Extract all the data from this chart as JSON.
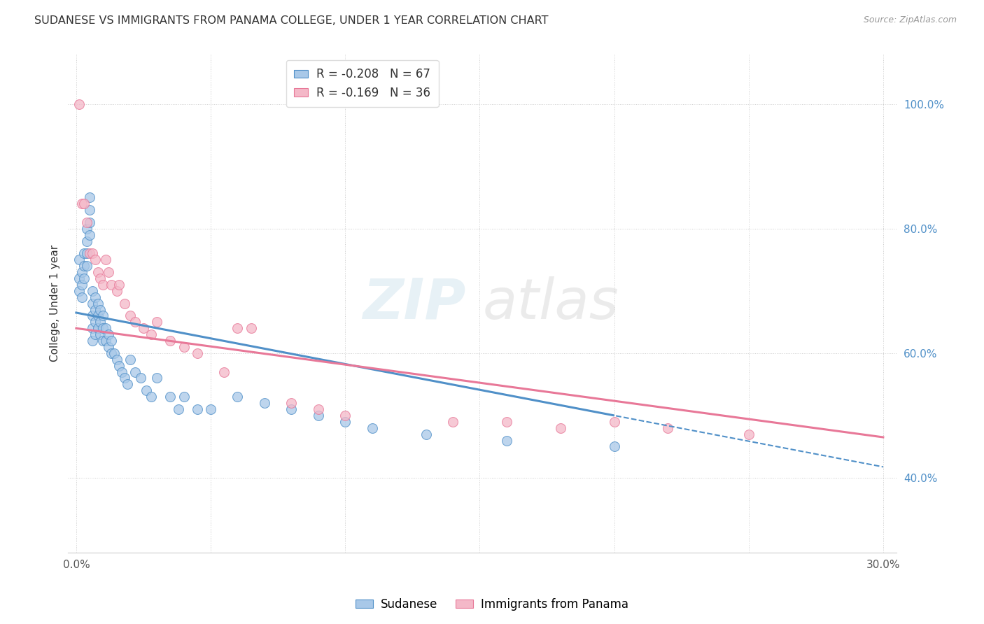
{
  "title": "SUDANESE VS IMMIGRANTS FROM PANAMA COLLEGE, UNDER 1 YEAR CORRELATION CHART",
  "source": "Source: ZipAtlas.com",
  "ylabel": "College, Under 1 year",
  "watermark_zip": "ZIP",
  "watermark_atlas": "atlas",
  "blue_color": "#a8c8e8",
  "pink_color": "#f4b8c8",
  "blue_line_color": "#5090c8",
  "pink_line_color": "#e87898",
  "legend_r1": "R = -0.208",
  "legend_n1": "N = 67",
  "legend_r2": "R = -0.169",
  "legend_n2": "N = 36",
  "sudanese_x": [
    0.001,
    0.001,
    0.001,
    0.002,
    0.002,
    0.002,
    0.003,
    0.003,
    0.003,
    0.004,
    0.004,
    0.004,
    0.004,
    0.005,
    0.005,
    0.005,
    0.005,
    0.006,
    0.006,
    0.006,
    0.006,
    0.006,
    0.007,
    0.007,
    0.007,
    0.007,
    0.008,
    0.008,
    0.008,
    0.009,
    0.009,
    0.009,
    0.01,
    0.01,
    0.01,
    0.011,
    0.011,
    0.012,
    0.012,
    0.013,
    0.013,
    0.014,
    0.015,
    0.016,
    0.017,
    0.018,
    0.019,
    0.02,
    0.022,
    0.024,
    0.026,
    0.028,
    0.03,
    0.035,
    0.038,
    0.04,
    0.045,
    0.05,
    0.06,
    0.07,
    0.08,
    0.09,
    0.1,
    0.11,
    0.13,
    0.16,
    0.2
  ],
  "sudanese_y": [
    0.75,
    0.72,
    0.7,
    0.73,
    0.71,
    0.69,
    0.76,
    0.74,
    0.72,
    0.8,
    0.78,
    0.76,
    0.74,
    0.85,
    0.83,
    0.81,
    0.79,
    0.7,
    0.68,
    0.66,
    0.64,
    0.62,
    0.69,
    0.67,
    0.65,
    0.63,
    0.68,
    0.66,
    0.64,
    0.67,
    0.65,
    0.63,
    0.66,
    0.64,
    0.62,
    0.64,
    0.62,
    0.63,
    0.61,
    0.62,
    0.6,
    0.6,
    0.59,
    0.58,
    0.57,
    0.56,
    0.55,
    0.59,
    0.57,
    0.56,
    0.54,
    0.53,
    0.56,
    0.53,
    0.51,
    0.53,
    0.51,
    0.51,
    0.53,
    0.52,
    0.51,
    0.5,
    0.49,
    0.48,
    0.47,
    0.46,
    0.45
  ],
  "panama_x": [
    0.001,
    0.002,
    0.003,
    0.004,
    0.005,
    0.006,
    0.007,
    0.008,
    0.009,
    0.01,
    0.011,
    0.012,
    0.013,
    0.015,
    0.016,
    0.018,
    0.02,
    0.022,
    0.025,
    0.028,
    0.03,
    0.035,
    0.04,
    0.045,
    0.055,
    0.06,
    0.065,
    0.08,
    0.09,
    0.1,
    0.14,
    0.16,
    0.18,
    0.2,
    0.22,
    0.25
  ],
  "panama_y": [
    1.0,
    0.84,
    0.84,
    0.81,
    0.76,
    0.76,
    0.75,
    0.73,
    0.72,
    0.71,
    0.75,
    0.73,
    0.71,
    0.7,
    0.71,
    0.68,
    0.66,
    0.65,
    0.64,
    0.63,
    0.65,
    0.62,
    0.61,
    0.6,
    0.57,
    0.64,
    0.64,
    0.52,
    0.51,
    0.5,
    0.49,
    0.49,
    0.48,
    0.49,
    0.48,
    0.47
  ],
  "x_ticks": [
    0.0,
    0.05,
    0.1,
    0.15,
    0.2,
    0.25,
    0.3
  ],
  "x_tick_labels": [
    "0.0%",
    "",
    "",
    "",
    "",
    "",
    "30.0%"
  ],
  "y_ticks": [
    0.4,
    0.6,
    0.8,
    1.0
  ],
  "y_tick_labels": [
    "40.0%",
    "60.0%",
    "80.0%",
    "100.0%"
  ],
  "xlim": [
    -0.003,
    0.305
  ],
  "ylim": [
    0.28,
    1.08
  ]
}
